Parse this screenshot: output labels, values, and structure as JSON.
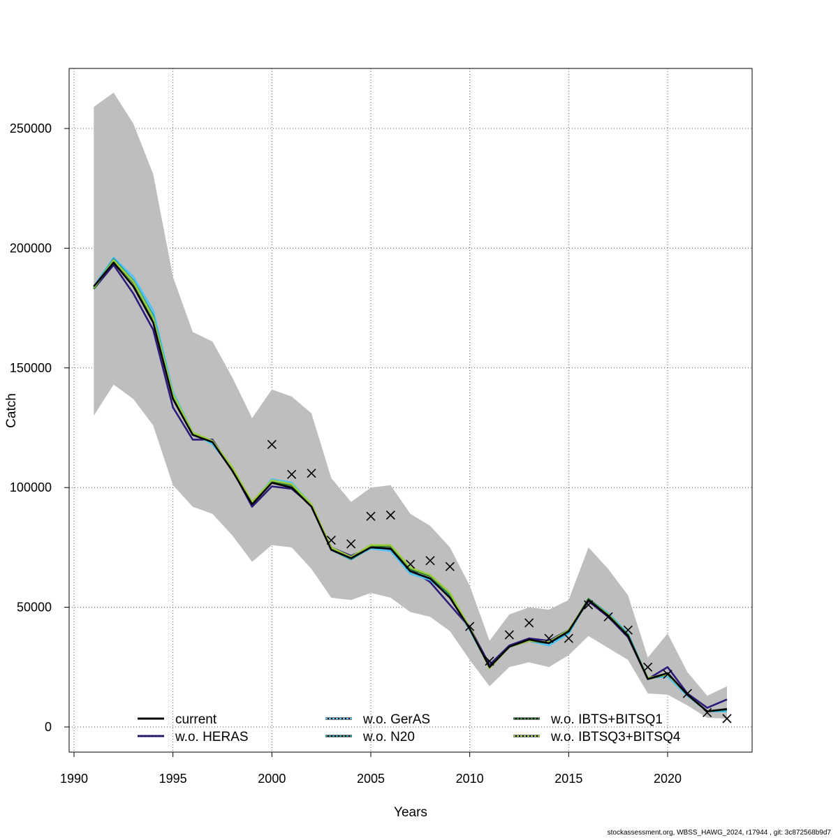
{
  "footer": "stockassessment.org, WBSS_HAWG_2024, r17944 , git: 3c872568b9d7",
  "chart_data": {
    "type": "line",
    "title": "",
    "xlabel": "Years",
    "ylabel": "Catch",
    "xlim": [
      1990,
      2024
    ],
    "ylim": [
      -10000,
      275000
    ],
    "x_ticks": [
      1990,
      1995,
      2000,
      2005,
      2010,
      2015,
      2020
    ],
    "x_tick_labels": [
      "1990",
      "1995",
      "2000",
      "2005",
      "2010",
      "2015",
      "2020"
    ],
    "y_ticks": [
      0,
      50000,
      100000,
      150000,
      200000,
      250000
    ],
    "y_tick_labels": [
      "0",
      "50000",
      "100000",
      "150000",
      "200000",
      "250000"
    ],
    "grid": true,
    "legend_position": "bottom",
    "x": [
      1991,
      1992,
      1993,
      1994,
      1995,
      1996,
      1997,
      1998,
      1999,
      2000,
      2001,
      2002,
      2003,
      2004,
      2005,
      2006,
      2007,
      2008,
      2009,
      2010,
      2011,
      2012,
      2013,
      2014,
      2015,
      2016,
      2017,
      2018,
      2019,
      2020,
      2021,
      2022,
      2023
    ],
    "band": {
      "upper": [
        259000,
        265000,
        252000,
        231000,
        188000,
        165000,
        161000,
        146000,
        129000,
        141000,
        138000,
        131000,
        104000,
        94000,
        100000,
        101000,
        89000,
        84000,
        75000,
        59000,
        36000,
        47000,
        50000,
        49000,
        53000,
        75000,
        66000,
        55000,
        29000,
        39000,
        23000,
        13000,
        17000
      ],
      "lower": [
        130000,
        143000,
        137000,
        126000,
        101000,
        92000,
        89000,
        80000,
        69000,
        76000,
        75000,
        66000,
        54000,
        53000,
        56000,
        54000,
        48000,
        46000,
        40000,
        28000,
        17000,
        25000,
        27000,
        25000,
        30000,
        38000,
        33000,
        28000,
        14000,
        13500,
        9000,
        3800,
        3500
      ]
    },
    "series": [
      {
        "name": "current",
        "color": "#000000",
        "dashed": false,
        "values": [
          184000,
          194000,
          184000,
          169000,
          137000,
          122000,
          119000,
          107000,
          93000,
          102000,
          100000,
          92000,
          74000,
          70500,
          75000,
          74500,
          65000,
          62000,
          54000,
          41000,
          25000,
          33500,
          36500,
          35000,
          40000,
          53000,
          46500,
          38000,
          20000,
          22500,
          13500,
          6500,
          7500
        ]
      },
      {
        "name": "w.o. HERAS",
        "color": "#2c1b7a",
        "dashed": false,
        "values": [
          183000,
          193000,
          181000,
          166000,
          133500,
          120000,
          120000,
          107500,
          92000,
          100500,
          99500,
          92500,
          75000,
          71500,
          75000,
          74000,
          66000,
          60500,
          51000,
          41500,
          26000,
          34000,
          37000,
          36000,
          40500,
          52500,
          46000,
          37500,
          20000,
          25000,
          14000,
          8000,
          11500
        ]
      },
      {
        "name": "w.o. GerAS",
        "color": "#4fc3f7",
        "dashed": true,
        "values": [
          184000,
          196000,
          188000,
          174000,
          140000,
          123000,
          118000,
          108000,
          93500,
          103500,
          102000,
          93000,
          74500,
          70500,
          74500,
          73500,
          64000,
          61500,
          54500,
          40500,
          25000,
          33500,
          36000,
          34000,
          39000,
          53500,
          47500,
          39000,
          20500,
          21000,
          13000,
          6500,
          6500
        ]
      },
      {
        "name": "w.o. N20",
        "color": "#1a9aa0",
        "dashed": true,
        "values": [
          183500,
          195500,
          186500,
          172000,
          139000,
          123000,
          119000,
          108000,
          93500,
          103000,
          101000,
          93000,
          74000,
          70000,
          75000,
          74500,
          65000,
          62000,
          55000,
          41000,
          25000,
          33500,
          36000,
          35000,
          39500,
          53000,
          47000,
          38500,
          20000,
          22000,
          13500,
          6500,
          7000
        ]
      },
      {
        "name": "w.o. IBTS+BITSQ1",
        "color": "#2e7d32",
        "dashed": true,
        "values": [
          183000,
          195000,
          185500,
          170500,
          138500,
          122500,
          119500,
          108000,
          93500,
          102500,
          101000,
          92500,
          74500,
          70500,
          75500,
          75500,
          66000,
          63000,
          55500,
          41000,
          25000,
          33500,
          36000,
          35000,
          40000,
          53500,
          47000,
          38500,
          20000,
          22000,
          13500,
          6500,
          7500
        ]
      },
      {
        "name": "w.o. IBTSQ3+BITSQ4",
        "color": "#9ccc3c",
        "dashed": true,
        "values": [
          183500,
          195000,
          186000,
          171000,
          139000,
          123000,
          119500,
          108500,
          94000,
          103000,
          101500,
          93000,
          75000,
          71000,
          76000,
          76000,
          66500,
          63500,
          56000,
          41500,
          24500,
          33500,
          36000,
          35500,
          40500,
          53000,
          47000,
          38000,
          20500,
          22000,
          13500,
          6500,
          7500
        ]
      }
    ],
    "observations": {
      "marker": "x",
      "x": [
        2000,
        2001,
        2002,
        2003,
        2004,
        2005,
        2006,
        2007,
        2008,
        2009,
        2010,
        2011,
        2012,
        2013,
        2014,
        2015,
        2016,
        2017,
        2018,
        2019,
        2020,
        2021,
        2022,
        2023
      ],
      "values": [
        118000,
        105500,
        106000,
        78000,
        76500,
        88000,
        88500,
        68000,
        69500,
        67000,
        42000,
        27500,
        38500,
        43500,
        37000,
        37000,
        51000,
        46000,
        40500,
        25000,
        22000,
        14000,
        6000,
        3500
      ]
    },
    "legend": {
      "col1": [
        "current",
        "w.o. HERAS"
      ],
      "col2": [
        "w.o. GerAS",
        "w.o. N20"
      ],
      "col3": [
        "w.o. IBTS+BITSQ1",
        "w.o. IBTSQ3+BITSQ4"
      ]
    }
  }
}
